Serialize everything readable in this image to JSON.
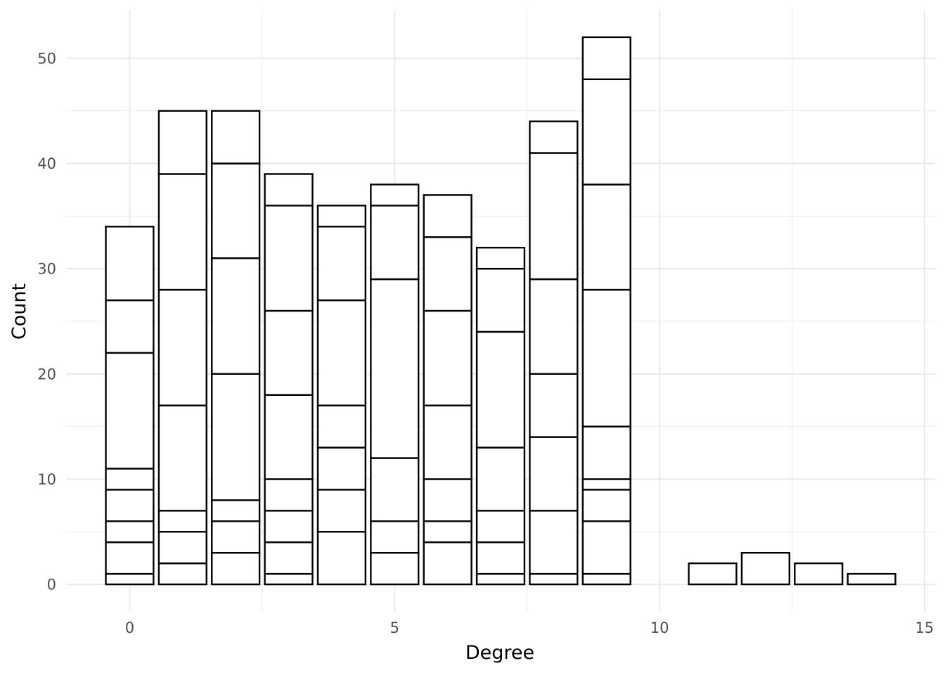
{
  "chart_data": {
    "type": "bar",
    "stacked": true,
    "title": "",
    "xlabel": "Degree",
    "ylabel": "Count",
    "xlim": [
      -1.2,
      15.2
    ],
    "ylim": [
      -2.6,
      54.6
    ],
    "x_ticks": [
      0,
      5,
      10,
      15
    ],
    "y_ticks": [
      0,
      10,
      20,
      30,
      40,
      50
    ],
    "grid": true,
    "legend": "none",
    "bar_fill": "#ffffff",
    "bar_outline": "#000000",
    "grid_color": "#ebebeb",
    "categories": [
      0,
      1,
      2,
      3,
      4,
      5,
      6,
      7,
      8,
      9,
      10,
      11,
      12,
      13,
      14
    ],
    "totals": [
      34,
      45,
      45,
      39,
      36,
      38,
      37,
      32,
      44,
      52,
      0,
      2,
      3,
      2,
      1
    ],
    "segment_boundaries": [
      [
        1,
        4,
        6,
        9,
        11,
        22,
        27,
        34
      ],
      [
        2,
        5,
        7,
        17,
        28,
        39,
        45
      ],
      [
        3,
        6,
        8,
        20,
        31,
        40,
        45
      ],
      [
        1,
        4,
        7,
        10,
        18,
        26,
        36,
        39
      ],
      [
        5,
        9,
        13,
        17,
        27,
        34,
        36
      ],
      [
        3,
        6,
        12,
        29,
        36,
        38
      ],
      [
        4,
        6,
        10,
        17,
        26,
        33,
        37
      ],
      [
        1,
        4,
        7,
        13,
        24,
        30,
        32
      ],
      [
        1,
        7,
        14,
        20,
        29,
        41,
        44
      ],
      [
        1,
        6,
        9,
        10,
        15,
        28,
        38,
        48,
        52
      ],
      [],
      [
        2
      ],
      [
        3
      ],
      [
        2
      ],
      [
        1
      ]
    ]
  }
}
